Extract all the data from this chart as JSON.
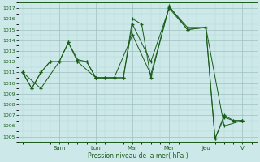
{
  "xlabel": "Pression niveau de la mer( hPa )",
  "ylim": [
    1004.5,
    1017.5
  ],
  "yticks": [
    1005,
    1006,
    1007,
    1008,
    1009,
    1010,
    1011,
    1012,
    1013,
    1014,
    1015,
    1016,
    1017
  ],
  "day_labels": [
    "Sam",
    "Lun",
    "Mar",
    "Mer",
    "Jeu",
    "V"
  ],
  "day_positions": [
    2.0,
    4.0,
    6.0,
    8.0,
    10.0,
    12.0
  ],
  "xlim": [
    -0.2,
    12.8
  ],
  "background_color": "#cce8e8",
  "grid_color_major": "#9fbfbf",
  "grid_color_minor": "#b8d8d8",
  "line_color": "#1a5c1a",
  "series1_x": [
    0.0,
    0.5,
    1.0,
    1.5,
    2.0,
    2.5,
    3.0,
    3.5,
    4.0,
    4.5,
    5.0,
    5.5,
    6.0,
    7.0,
    8.0,
    9.0,
    10.0,
    10.5,
    11.0,
    11.5,
    12.0
  ],
  "series1_y": [
    1011.0,
    1009.5,
    1011.0,
    1012.0,
    1012.0,
    1013.8,
    1012.0,
    1012.0,
    1010.5,
    1010.5,
    1010.5,
    1010.5,
    1015.5,
    1012.0,
    1017.0,
    1015.0,
    1015.2,
    1004.8,
    1006.8,
    1006.5,
    1006.5
  ],
  "series2_x": [
    0.0,
    0.5,
    1.0,
    1.5,
    2.0,
    2.5,
    3.0,
    3.5,
    4.0,
    4.5,
    5.0,
    5.5,
    6.0,
    6.5,
    7.0,
    8.0,
    9.0,
    10.0,
    10.5,
    11.0,
    11.5,
    12.0
  ],
  "series2_y": [
    1011.0,
    1009.5,
    1011.0,
    1012.0,
    1012.0,
    1013.8,
    1012.2,
    1012.0,
    1010.5,
    1010.5,
    1010.5,
    1010.5,
    1016.0,
    1015.5,
    1010.5,
    1017.2,
    1015.0,
    1015.2,
    1004.8,
    1007.0,
    1006.5,
    1006.5
  ],
  "series3_x": [
    0.0,
    1.0,
    2.0,
    3.0,
    4.0,
    5.0,
    6.0,
    7.0,
    8.0,
    9.0,
    10.0,
    11.0,
    12.0
  ],
  "series3_y": [
    1011.0,
    1009.5,
    1012.0,
    1012.0,
    1010.5,
    1010.5,
    1014.5,
    1010.8,
    1017.1,
    1015.2,
    1015.2,
    1006.0,
    1006.5
  ]
}
